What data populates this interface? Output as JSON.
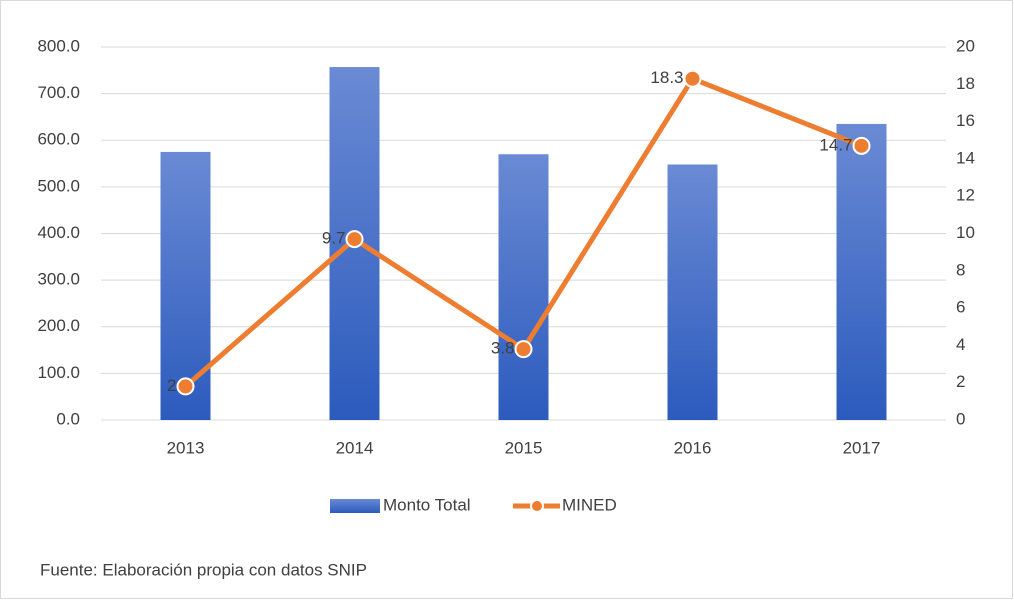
{
  "chart_data": {
    "type": "bar_line",
    "categories": [
      "2013",
      "2014",
      "2015",
      "2016",
      "2017"
    ],
    "series": [
      {
        "name": "Monto Total",
        "color": "#4472c4",
        "type": "bar",
        "values": [
          575,
          757,
          570,
          548,
          635
        ]
      },
      {
        "name": "MINED",
        "color": "#ed7d31",
        "type": "line",
        "axis": "y2",
        "values": [
          1.8,
          9.7,
          3.8,
          18.3,
          14.7
        ],
        "value_labels": [
          "2",
          "9.7",
          "3.8",
          "18.3",
          "14.7"
        ]
      }
    ],
    "ylim": [
      0,
      800
    ],
    "yticks": [
      {
        "value": 0,
        "label": "0.0"
      },
      {
        "value": 100,
        "label": "100.0"
      },
      {
        "value": 200,
        "label": "200.0"
      },
      {
        "value": 300,
        "label": "300.0"
      },
      {
        "value": 400,
        "label": "400.0"
      },
      {
        "value": 500,
        "label": "500.0"
      },
      {
        "value": 600,
        "label": "600.0"
      },
      {
        "value": 700,
        "label": "700.0"
      },
      {
        "value": 800,
        "label": "800.0"
      }
    ],
    "y2lim": [
      0,
      20
    ],
    "y2ticks": [
      0,
      2,
      4,
      6,
      8,
      10,
      12,
      14,
      16,
      18,
      20
    ],
    "grid": true,
    "legend": "bottom",
    "source": "Fuente: Elaboración propia con datos SNIP"
  }
}
